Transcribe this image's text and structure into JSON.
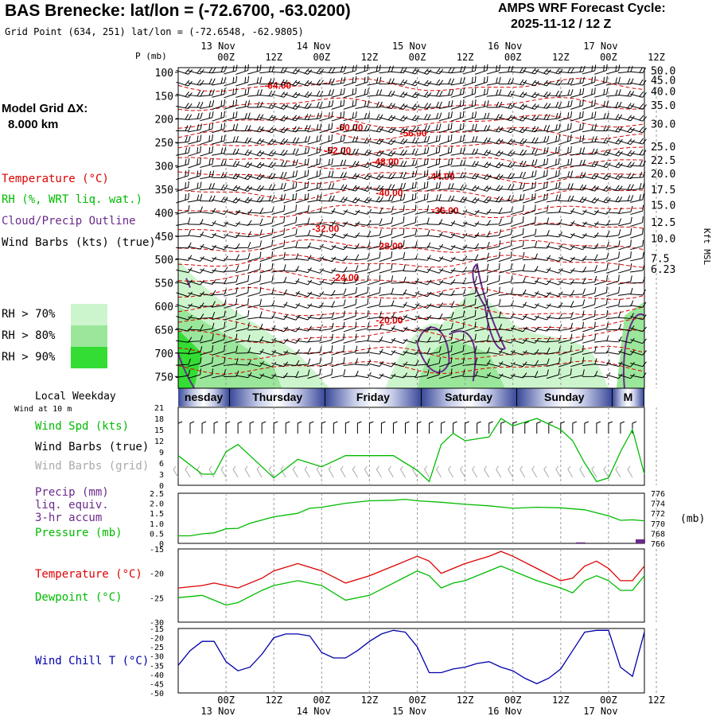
{
  "header": {
    "title": "BAS Brenecke:  lat/lon = (-72.6700, -63.0200)",
    "grid_point": "Grid Point (634, 251) lat/lon = (-72.6548, -62.9805)",
    "cycle_line1": "AMPS WRF Forecast Cycle:",
    "cycle_line2": "2025-11-12 / 12  Z"
  },
  "left_panel": {
    "model_grid_label": "Model Grid ΔX:",
    "model_grid_value": "8.000 km",
    "legend_temperature": "Temperature (°C)",
    "legend_rh": "RH (%, WRT liq. wat.)",
    "legend_cloud": "Cloud/Precip Outline",
    "legend_wind": "Wind Barbs (kts) (true)",
    "rh_levels": [
      "RH > 70%",
      "RH > 80%",
      "RH > 90%"
    ],
    "local_weekday": "Local Weekday",
    "wind_at_10m": "Wind at 10 m",
    "wind_spd": "Wind Spd (kts)",
    "wind_barbs_true": "Wind Barbs (true)",
    "wind_barbs_grid": "Wind Barbs (grid)",
    "precip_lines": [
      "Precip (mm)",
      "liq. equiv.",
      "3-hr accum"
    ],
    "pressure_label": "Pressure (mb)",
    "temp_label": "Temperature (°C)",
    "dewpoint_label": "Dewpoint (°C)",
    "windchill_label": "Wind Chill T (°C)"
  },
  "colors": {
    "temperature": "#dd0000",
    "dewpoint": "#00bb00",
    "cloud": "#6a2a8a",
    "rh70": "#cdf5cd",
    "rh80": "#9ae69a",
    "rh90": "#33dd33",
    "windchill": "#0000aa",
    "pressure": "#00bb00",
    "grid": "#999999",
    "grey_barb": "#aaaaaa",
    "band_dark": "#3b4a9a",
    "band_light": "#ffffff"
  },
  "chart_data": [
    {
      "type": "line",
      "panel": "time-height cross-section",
      "y_axis_title": "P (mb)",
      "y_ticks": [
        100,
        150,
        200,
        250,
        300,
        350,
        400,
        450,
        500,
        550,
        600,
        650,
        700,
        750
      ],
      "right_axis_title": "Kft MSL",
      "right_ticks": [
        {
          "label": "50.0",
          "p": 96
        },
        {
          "label": "45.0",
          "p": 116
        },
        {
          "label": "40.0",
          "p": 140
        },
        {
          "label": "35.0",
          "p": 170
        },
        {
          "label": "30.0",
          "p": 210
        },
        {
          "label": "25.0",
          "p": 258
        },
        {
          "label": "22.5",
          "p": 287
        },
        {
          "label": "20.0",
          "p": 316
        },
        {
          "label": "17.5",
          "p": 350
        },
        {
          "label": "15.0",
          "p": 383
        },
        {
          "label": "12.5",
          "p": 420
        },
        {
          "label": "10.0",
          "p": 455
        },
        {
          "label": "7.5",
          "p": 497
        },
        {
          "label": "6.23",
          "p": 520
        }
      ],
      "top_ticks": [
        {
          "time": "00Z",
          "date": "13 Nov",
          "h": 12
        },
        {
          "time": "12Z",
          "date": "",
          "h": 24
        },
        {
          "time": "00Z",
          "date": "14 Nov",
          "h": 36
        },
        {
          "time": "12Z",
          "date": "",
          "h": 48
        },
        {
          "time": "00Z",
          "date": "15 Nov",
          "h": 60
        },
        {
          "time": "12Z",
          "date": "",
          "h": 72
        },
        {
          "time": "00Z",
          "date": "16 Nov",
          "h": 84
        },
        {
          "time": "12Z",
          "date": "",
          "h": 96
        },
        {
          "time": "00Z",
          "date": "17 Nov",
          "h": 108
        },
        {
          "time": "12Z",
          "date": "",
          "h": 120
        }
      ],
      "temperature_labels": [
        {
          "text": "-64.00",
          "h": 25,
          "p": 128
        },
        {
          "text": "-60.00",
          "h": 43,
          "p": 218
        },
        {
          "text": "-56.00",
          "h": 59,
          "p": 230
        },
        {
          "text": "-52.00",
          "h": 40,
          "p": 268
        },
        {
          "text": "-48.00",
          "h": 52,
          "p": 291
        },
        {
          "text": "-44.00",
          "h": 66,
          "p": 323
        },
        {
          "text": "-40.00",
          "h": 53,
          "p": 358
        },
        {
          "text": "-36.00",
          "h": 67,
          "p": 396
        },
        {
          "text": "-32.00",
          "h": 37,
          "p": 434
        },
        {
          "text": "-28.00",
          "h": 53,
          "p": 472
        },
        {
          "text": "-24.00",
          "h": 42,
          "p": 539
        },
        {
          "text": "-20.00",
          "h": 53,
          "p": 630
        }
      ]
    },
    {
      "type": "line",
      "panel": "10 m wind speed",
      "y_ticks": [
        0,
        3,
        6,
        9,
        12,
        15,
        18,
        21
      ],
      "ylim": [
        0,
        21
      ],
      "series": [
        {
          "name": "Wind Spd (kts)",
          "x": [
            0,
            6,
            9,
            12,
            15,
            21,
            24,
            30,
            36,
            42,
            48,
            54,
            60,
            63,
            66,
            69,
            72,
            78,
            81,
            84,
            90,
            96,
            99,
            102,
            105,
            108,
            111,
            114,
            117
          ],
          "values": [
            8,
            3,
            3,
            9,
            11,
            5,
            2,
            7,
            5,
            8,
            8,
            8,
            4,
            1,
            11,
            14,
            12,
            13,
            18,
            16,
            18,
            15,
            12,
            6,
            1,
            2,
            9,
            15,
            3
          ]
        }
      ],
      "weekday_band": [
        {
          "label": "nesday",
          "h_start": 0,
          "h_end": 13
        },
        {
          "label": "Thursday",
          "h_start": 13,
          "h_end": 37
        },
        {
          "label": "Friday",
          "h_start": 37,
          "h_end": 61
        },
        {
          "label": "Saturday",
          "h_start": 61,
          "h_end": 85
        },
        {
          "label": "Sunday",
          "h_start": 85,
          "h_end": 109
        },
        {
          "label": "M",
          "h_start": 109,
          "h_end": 117
        }
      ]
    },
    {
      "type": "line",
      "panel": "precip and pressure",
      "left_ticks": [
        "0",
        "0.5",
        "1.0",
        "1.5",
        "2.0",
        "2.5"
      ],
      "right_ticks": [
        "766",
        "768",
        "770",
        "772",
        "774",
        "776"
      ],
      "right_unit": "(mb)",
      "precip_ylim": [
        0,
        2.5
      ],
      "pressure_ylim": [
        766,
        776
      ],
      "series": [
        {
          "name": "Pressure (mb)",
          "x": [
            0,
            3,
            6,
            9,
            12,
            15,
            18,
            24,
            30,
            33,
            36,
            42,
            48,
            54,
            57,
            60,
            66,
            72,
            78,
            84,
            90,
            96,
            102,
            108,
            111,
            114,
            117
          ],
          "values": [
            767.5,
            767.5,
            767.9,
            768.1,
            768.9,
            769.0,
            770.0,
            771.3,
            772.0,
            773.0,
            773.2,
            774.0,
            774.5,
            774.6,
            774.8,
            774.5,
            774.2,
            773.8,
            773.5,
            773.0,
            773.2,
            773.1,
            772.7,
            771.5,
            770.6,
            770.7,
            770.5
          ]
        },
        {
          "name": "Precip (mm)",
          "x": [
            101,
            116
          ],
          "values": [
            0.05,
            0.2
          ]
        }
      ]
    },
    {
      "type": "line",
      "panel": "temperature and dewpoint",
      "y_ticks": [
        -15,
        -20,
        -25,
        -30
      ],
      "ylim": [
        -30,
        -15
      ],
      "series": [
        {
          "name": "Temperature (°C)",
          "x": [
            0,
            6,
            9,
            12,
            15,
            21,
            24,
            30,
            36,
            42,
            48,
            54,
            60,
            63,
            66,
            69,
            72,
            78,
            81,
            84,
            90,
            96,
            99,
            102,
            105,
            108,
            111,
            114,
            117
          ],
          "values": [
            -23,
            -22.5,
            -22,
            -22.5,
            -23,
            -21,
            -19.5,
            -18,
            -19.5,
            -22,
            -20.5,
            -18.5,
            -16.5,
            -17.5,
            -20,
            -19,
            -18,
            -16.5,
            -15.5,
            -16.5,
            -19,
            -21.5,
            -21,
            -18.5,
            -17.5,
            -19,
            -21.5,
            -21.5,
            -18.5
          ]
        },
        {
          "name": "Dewpoint (°C)",
          "x": [
            0,
            6,
            9,
            12,
            15,
            21,
            24,
            30,
            36,
            42,
            48,
            54,
            60,
            63,
            66,
            69,
            72,
            78,
            81,
            84,
            90,
            96,
            99,
            102,
            105,
            108,
            111,
            114,
            117
          ],
          "values": [
            -25,
            -24.5,
            -25.5,
            -26.5,
            -26,
            -23.5,
            -22.5,
            -21.5,
            -22.5,
            -25.5,
            -24.5,
            -22,
            -19.5,
            -20.5,
            -23,
            -22,
            -21.5,
            -19.5,
            -18.5,
            -19.5,
            -21.5,
            -23,
            -24,
            -21.5,
            -20.5,
            -21.5,
            -23.5,
            -23.5,
            -20.5
          ]
        }
      ]
    },
    {
      "type": "line",
      "panel": "wind chill",
      "y_ticks": [
        -15,
        -20,
        -25,
        -30,
        -35,
        -40,
        -45,
        -50
      ],
      "ylim": [
        -50,
        -15
      ],
      "series": [
        {
          "name": "Wind Chill T (°C)",
          "x": [
            0,
            3,
            6,
            9,
            12,
            15,
            18,
            21,
            24,
            27,
            30,
            33,
            36,
            39,
            42,
            45,
            48,
            51,
            54,
            57,
            60,
            63,
            66,
            69,
            72,
            75,
            78,
            81,
            84,
            87,
            90,
            93,
            96,
            99,
            102,
            105,
            108,
            111,
            114,
            117
          ],
          "values": [
            -35,
            -27,
            -22,
            -22,
            -33,
            -38,
            -36,
            -29,
            -20,
            -18,
            -18,
            -19,
            -28,
            -31,
            -31,
            -27,
            -22,
            -18,
            -16,
            -17,
            -25,
            -39,
            -39,
            -37,
            -36,
            -34,
            -33,
            -36,
            -38,
            -42,
            -45,
            -42,
            -37,
            -27,
            -17,
            -16,
            -16,
            -36,
            -41,
            -17
          ]
        }
      ]
    }
  ]
}
